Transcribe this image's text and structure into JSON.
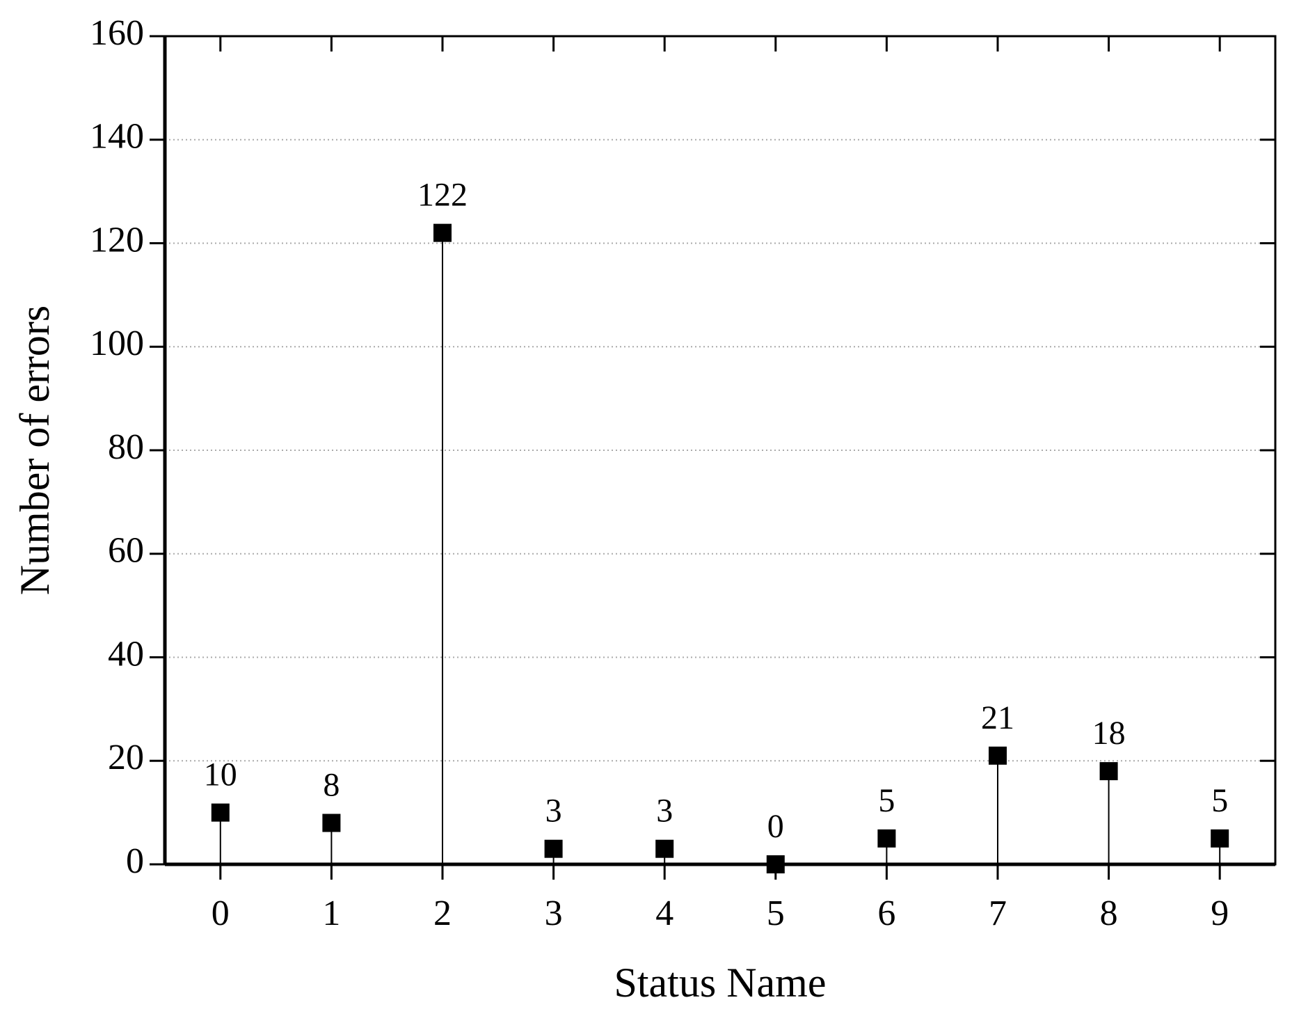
{
  "chart_data": {
    "type": "stem",
    "x_label": "Status Name",
    "y_label": "Number of errors",
    "x": [
      0,
      1,
      2,
      3,
      4,
      5,
      6,
      7,
      8,
      9
    ],
    "values": [
      10,
      8,
      122,
      3,
      3,
      0,
      5,
      21,
      18,
      5
    ],
    "color": "#000000",
    "xlim": [
      -0.5,
      9.5
    ],
    "xticks": [
      0,
      1,
      2,
      3,
      4,
      5,
      6,
      7,
      8,
      9
    ],
    "ylim": [
      0,
      160
    ],
    "yticks": [
      0,
      20,
      40,
      60,
      80,
      100,
      120,
      140,
      160
    ],
    "grid": true
  }
}
